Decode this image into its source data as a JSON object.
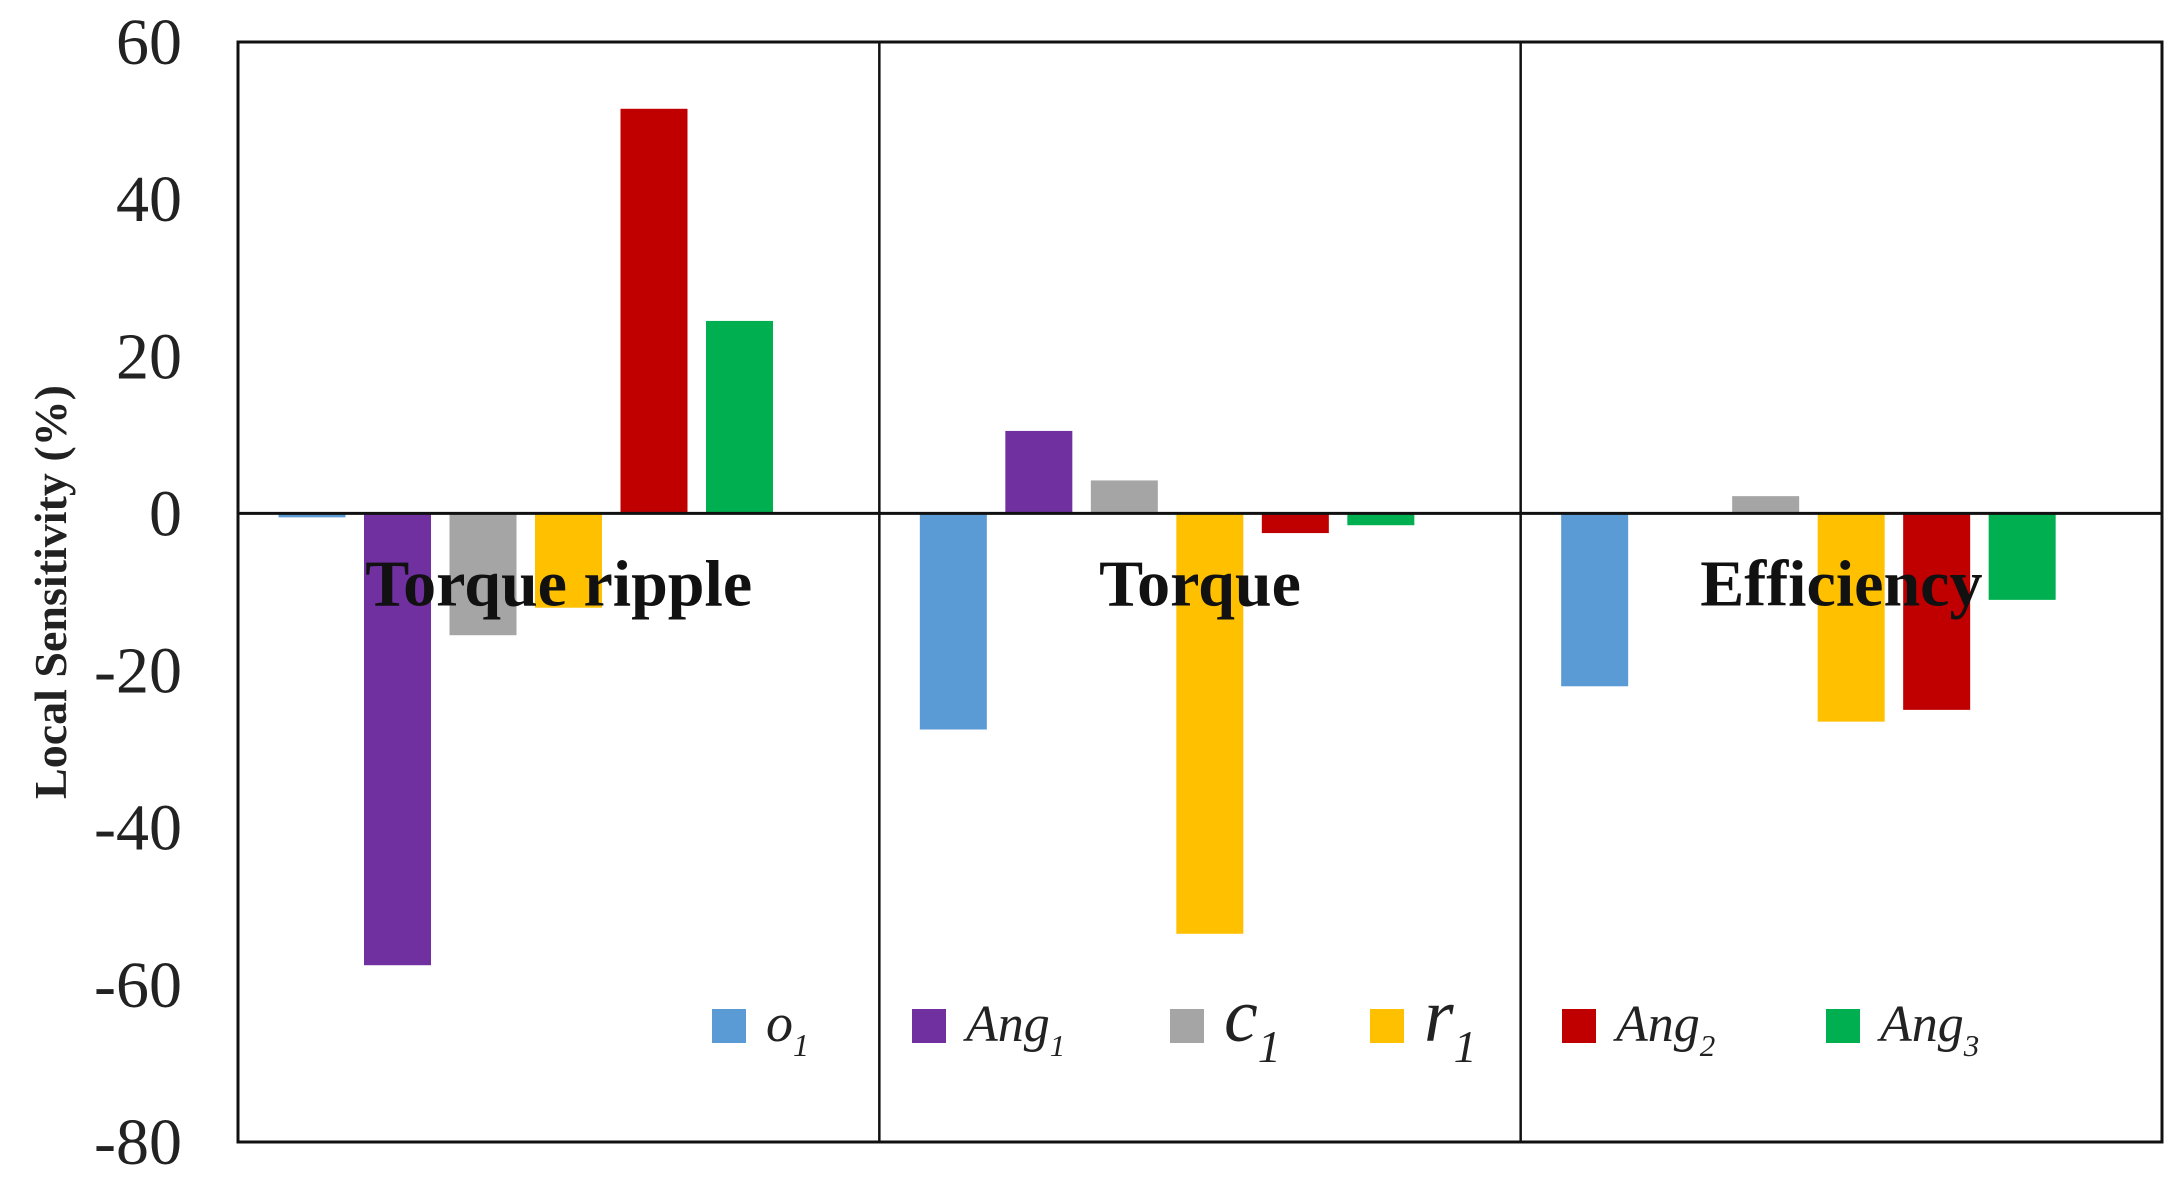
{
  "chart_data": {
    "type": "bar",
    "categories": [
      "Torque ripple",
      "Torque",
      "Efficiency"
    ],
    "ylabel": "Local Sensitivity (%)",
    "xlabel": "",
    "ylim": [
      -80,
      60
    ],
    "yticks": [
      60,
      40,
      20,
      0,
      -20,
      -40,
      -60,
      -80
    ],
    "grid": false,
    "legend_position": "bottom-inside",
    "series": [
      {
        "name": "o",
        "sub": "1",
        "color": "#5B9BD5",
        "values": [
          -0.5,
          -27.5,
          -22
        ]
      },
      {
        "name": "Ang",
        "sub": "1",
        "color": "#7030A0",
        "values": [
          -57.5,
          10.5,
          0
        ]
      },
      {
        "name": "c",
        "sub": "1",
        "color": "#A5A5A5",
        "values": [
          -15.5,
          4.2,
          2.2
        ]
      },
      {
        "name": "r",
        "sub": "1",
        "color": "#FFC000",
        "values": [
          -12,
          -53.5,
          -26.5
        ]
      },
      {
        "name": "Ang",
        "sub": "2",
        "color": "#C00000",
        "values": [
          51.5,
          -2.5,
          -25
        ]
      },
      {
        "name": "Ang",
        "sub": "3",
        "color": "#00B050",
        "values": [
          24.5,
          -1.5,
          -11
        ]
      }
    ]
  }
}
